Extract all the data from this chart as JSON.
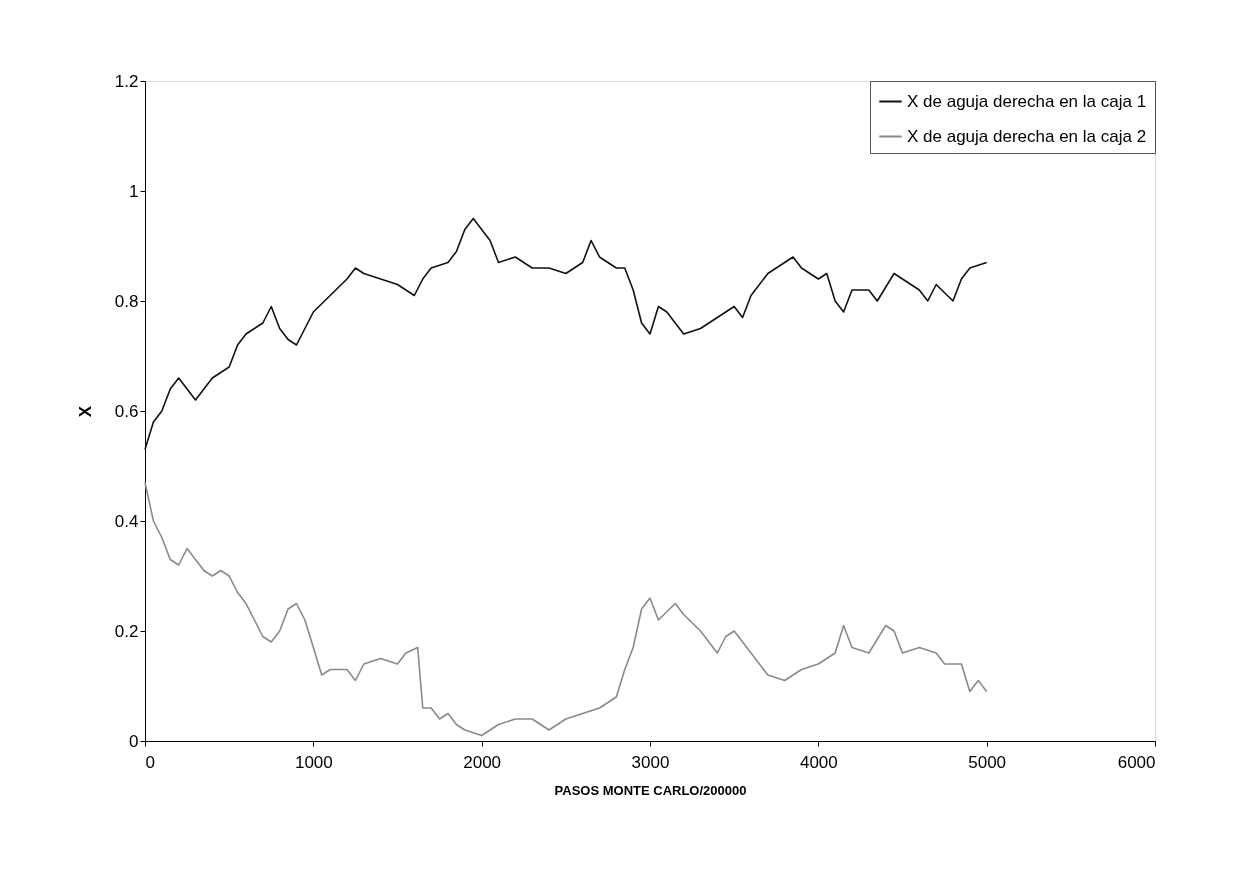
{
  "chart_data": {
    "type": "line",
    "xlabel": "PASOS MONTE CARLO/200000",
    "ylabel": "X",
    "xlim": [
      0,
      6000
    ],
    "xticks": [
      0,
      1000,
      2000,
      3000,
      4000,
      5000,
      6000
    ],
    "ylim": [
      0,
      1.2
    ],
    "yticks": [
      0,
      0.2,
      0.4,
      0.6,
      0.8,
      1,
      {
        "value": 1.2,
        "label": "1.2"
      }
    ],
    "grid": false,
    "legend": "top right",
    "marker": "none",
    "line_style": "solid",
    "series": [
      {
        "name": "X de aguja derecha en la caja 1",
        "color": "#111111",
        "x": [
          0,
          50,
          100,
          150,
          200,
          250,
          300,
          350,
          400,
          500,
          550,
          600,
          700,
          750,
          800,
          850,
          900,
          950,
          1000,
          1100,
          1200,
          1250,
          1300,
          1400,
          1500,
          1600,
          1650,
          1700,
          1800,
          1850,
          1900,
          1950,
          2000,
          2050,
          2100,
          2200,
          2300,
          2400,
          2500,
          2600,
          2650,
          2700,
          2800,
          2850,
          2900,
          2950,
          3000,
          3050,
          3100,
          3200,
          3300,
          3400,
          3500,
          3550,
          3600,
          3700,
          3800,
          3850,
          3900,
          4000,
          4050,
          4100,
          4150,
          4200,
          4300,
          4350,
          4450,
          4500,
          4600,
          4650,
          4700,
          4800,
          4850,
          4900,
          5000
        ],
        "values": [
          0.53,
          0.58,
          0.6,
          0.64,
          0.66,
          0.64,
          0.62,
          0.64,
          0.66,
          0.68,
          0.72,
          0.74,
          0.76,
          0.79,
          0.75,
          0.73,
          0.72,
          0.75,
          0.78,
          0.81,
          0.84,
          0.86,
          0.85,
          0.84,
          0.83,
          0.81,
          0.84,
          0.86,
          0.87,
          0.89,
          0.93,
          0.95,
          0.93,
          0.91,
          0.87,
          0.88,
          0.86,
          0.86,
          0.85,
          0.87,
          0.91,
          0.88,
          0.86,
          0.86,
          0.82,
          0.76,
          0.74,
          0.79,
          0.78,
          0.74,
          0.75,
          0.77,
          0.79,
          0.77,
          0.81,
          0.85,
          0.87,
          0.88,
          0.86,
          0.84,
          0.85,
          0.8,
          0.78,
          0.82,
          0.82,
          0.8,
          0.85,
          0.84,
          0.82,
          0.8,
          0.83,
          0.8,
          0.84,
          0.86,
          0.87
        ]
      },
      {
        "name": "X de aguja derecha en la caja 2",
        "color": "#8a8a8a",
        "x": [
          0,
          50,
          100,
          150,
          200,
          250,
          300,
          350,
          400,
          450,
          500,
          550,
          600,
          650,
          700,
          750,
          800,
          850,
          900,
          950,
          1000,
          1050,
          1100,
          1200,
          1250,
          1300,
          1400,
          1500,
          1550,
          1620,
          1650,
          1700,
          1750,
          1800,
          1850,
          1900,
          2000,
          2100,
          2200,
          2300,
          2400,
          2500,
          2600,
          2700,
          2800,
          2850,
          2900,
          2950,
          3000,
          3050,
          3150,
          3200,
          3300,
          3400,
          3450,
          3500,
          3600,
          3700,
          3800,
          3900,
          4000,
          4100,
          4150,
          4200,
          4300,
          4400,
          4450,
          4500,
          4600,
          4700,
          4750,
          4850,
          4900,
          4950,
          5000
        ],
        "values": [
          0.47,
          0.4,
          0.37,
          0.33,
          0.32,
          0.35,
          0.33,
          0.31,
          0.3,
          0.31,
          0.3,
          0.27,
          0.25,
          0.22,
          0.19,
          0.18,
          0.2,
          0.24,
          0.25,
          0.22,
          0.17,
          0.12,
          0.13,
          0.13,
          0.11,
          0.14,
          0.15,
          0.14,
          0.16,
          0.17,
          0.06,
          0.06,
          0.04,
          0.05,
          0.03,
          0.02,
          0.01,
          0.03,
          0.04,
          0.04,
          0.02,
          0.04,
          0.05,
          0.06,
          0.08,
          0.13,
          0.17,
          0.24,
          0.26,
          0.22,
          0.25,
          0.23,
          0.2,
          0.16,
          0.19,
          0.2,
          0.16,
          0.12,
          0.11,
          0.13,
          0.14,
          0.16,
          0.21,
          0.17,
          0.16,
          0.21,
          0.2,
          0.16,
          0.17,
          0.16,
          0.14,
          0.14,
          0.09,
          0.11,
          0.09
        ]
      }
    ]
  }
}
